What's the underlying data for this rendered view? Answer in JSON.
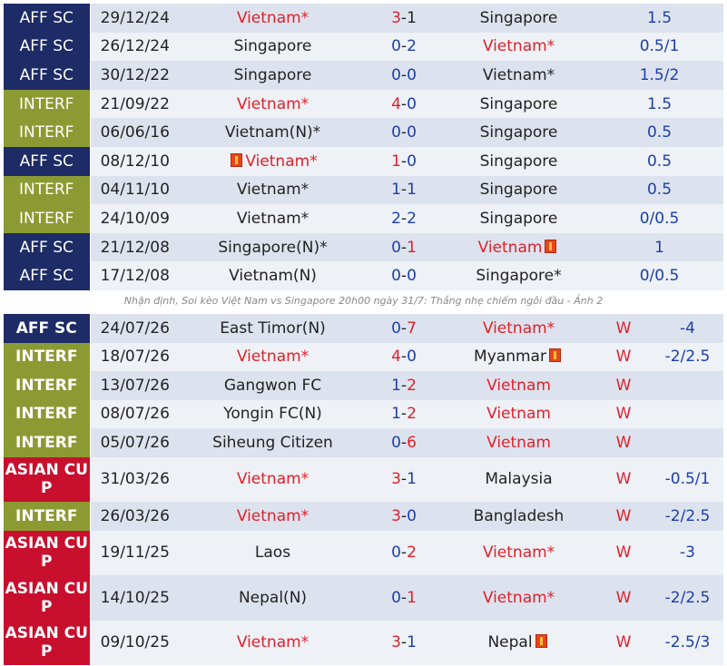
{
  "h2h": [
    {
      "comp": "AFF SC",
      "type": "aff",
      "date": "29/12/24",
      "home": "Vietnam*",
      "home_color": "red",
      "home_flag": false,
      "score_a": "3",
      "score_b": "1",
      "score_a_color": "red",
      "score_b_color": "dark",
      "away": "Singapore",
      "away_color": "dark",
      "away_flag": false,
      "odds": "1.5"
    },
    {
      "comp": "AFF SC",
      "type": "aff",
      "date": "26/12/24",
      "home": "Singapore",
      "home_color": "dark",
      "home_flag": false,
      "score_a": "0",
      "score_b": "2",
      "score_a_color": "blue",
      "score_b_color": "blue",
      "away": "Vietnam*",
      "away_color": "red",
      "away_flag": false,
      "odds": "0.5/1"
    },
    {
      "comp": "AFF SC",
      "type": "aff",
      "date": "30/12/22",
      "home": "Singapore",
      "home_color": "dark",
      "home_flag": false,
      "score_a": "0",
      "score_b": "0",
      "score_a_color": "blue",
      "score_b_color": "blue",
      "away": "Vietnam*",
      "away_color": "dark",
      "away_flag": false,
      "odds": "1.5/2"
    },
    {
      "comp": "INTERF",
      "type": "interf",
      "date": "21/09/22",
      "home": "Vietnam*",
      "home_color": "red",
      "home_flag": false,
      "score_a": "4",
      "score_b": "0",
      "score_a_color": "red",
      "score_b_color": "blue",
      "away": "Singapore",
      "away_color": "dark",
      "away_flag": false,
      "odds": "1.5"
    },
    {
      "comp": "INTERF",
      "type": "interf",
      "date": "06/06/16",
      "home": "Vietnam(N)*",
      "home_color": "dark",
      "home_flag": false,
      "score_a": "0",
      "score_b": "0",
      "score_a_color": "blue",
      "score_b_color": "blue",
      "away": "Singapore",
      "away_color": "dark",
      "away_flag": false,
      "odds": "0.5"
    },
    {
      "comp": "AFF SC",
      "type": "aff",
      "date": "08/12/10",
      "home": "Vietnam*",
      "home_color": "red",
      "home_flag": true,
      "score_a": "1",
      "score_b": "0",
      "score_a_color": "red",
      "score_b_color": "blue",
      "away": "Singapore",
      "away_color": "dark",
      "away_flag": false,
      "odds": "0.5"
    },
    {
      "comp": "INTERF",
      "type": "interf",
      "date": "04/11/10",
      "home": "Vietnam*",
      "home_color": "dark",
      "home_flag": false,
      "score_a": "1",
      "score_b": "1",
      "score_a_color": "blue",
      "score_b_color": "blue",
      "away": "Singapore",
      "away_color": "dark",
      "away_flag": false,
      "odds": "0.5"
    },
    {
      "comp": "INTERF",
      "type": "interf",
      "date": "24/10/09",
      "home": "Vietnam*",
      "home_color": "dark",
      "home_flag": false,
      "score_a": "2",
      "score_b": "2",
      "score_a_color": "blue",
      "score_b_color": "blue",
      "away": "Singapore",
      "away_color": "dark",
      "away_flag": false,
      "odds": "0/0.5"
    },
    {
      "comp": "AFF SC",
      "type": "aff",
      "date": "21/12/08",
      "home": "Singapore(N)*",
      "home_color": "dark",
      "home_flag": false,
      "score_a": "0",
      "score_b": "1",
      "score_a_color": "blue",
      "score_b_color": "red",
      "away": "Vietnam",
      "away_color": "red",
      "away_flag": true,
      "odds": "1"
    },
    {
      "comp": "AFF SC",
      "type": "aff",
      "date": "17/12/08",
      "home": "Vietnam(N)",
      "home_color": "dark",
      "home_flag": false,
      "score_a": "0",
      "score_b": "0",
      "score_a_color": "blue",
      "score_b_color": "blue",
      "away": "Singapore*",
      "away_color": "dark",
      "away_flag": false,
      "odds": "0/0.5"
    }
  ],
  "caption": "Nhận định, Soi kèo Việt Nam vs Singapore 20h00 ngày 31/7: Thắng nhẹ chiếm ngôi đầu - Ảnh 2",
  "recent": [
    {
      "comp": "AFF SC",
      "type": "aff",
      "date": "24/07/26",
      "home": "East Timor(N)",
      "home_color": "dark",
      "home_flag": false,
      "score_a": "0",
      "score_b": "7",
      "score_a_color": "blue",
      "score_b_color": "red",
      "away": "Vietnam*",
      "away_color": "red",
      "away_flag": false,
      "result": "W",
      "odds": "-4"
    },
    {
      "comp": "INTERF",
      "type": "interf",
      "date": "18/07/26",
      "home": "Vietnam*",
      "home_color": "red",
      "home_flag": false,
      "score_a": "4",
      "score_b": "0",
      "score_a_color": "red",
      "score_b_color": "blue",
      "away": "Myanmar",
      "away_color": "dark",
      "away_flag": true,
      "result": "W",
      "odds": "-2/2.5"
    },
    {
      "comp": "INTERF",
      "type": "interf",
      "date": "13/07/26",
      "home": "Gangwon FC",
      "home_color": "dark",
      "home_flag": false,
      "score_a": "1",
      "score_b": "2",
      "score_a_color": "blue",
      "score_b_color": "red",
      "away": "Vietnam",
      "away_color": "red",
      "away_flag": false,
      "result": "W",
      "odds": ""
    },
    {
      "comp": "INTERF",
      "type": "interf",
      "date": "08/07/26",
      "home": "Yongin FC(N)",
      "home_color": "dark",
      "home_flag": false,
      "score_a": "1",
      "score_b": "2",
      "score_a_color": "blue",
      "score_b_color": "red",
      "away": "Vietnam",
      "away_color": "red",
      "away_flag": false,
      "result": "W",
      "odds": ""
    },
    {
      "comp": "INTERF",
      "type": "interf",
      "date": "05/07/26",
      "home": "Siheung Citizen",
      "home_color": "dark",
      "home_flag": false,
      "score_a": "0",
      "score_b": "6",
      "score_a_color": "blue",
      "score_b_color": "red",
      "away": "Vietnam",
      "away_color": "red",
      "away_flag": false,
      "result": "W",
      "odds": ""
    },
    {
      "comp": "ASIAN CUP",
      "type": "asian",
      "date": "31/03/26",
      "home": "Vietnam*",
      "home_color": "red",
      "home_flag": false,
      "score_a": "3",
      "score_b": "1",
      "score_a_color": "red",
      "score_b_color": "blue",
      "away": "Malaysia",
      "away_color": "dark",
      "away_flag": false,
      "result": "W",
      "odds": "-0.5/1"
    },
    {
      "comp": "INTERF",
      "type": "interf",
      "date": "26/03/26",
      "home": "Vietnam*",
      "home_color": "red",
      "home_flag": false,
      "score_a": "3",
      "score_b": "0",
      "score_a_color": "red",
      "score_b_color": "blue",
      "away": "Bangladesh",
      "away_color": "dark",
      "away_flag": false,
      "result": "W",
      "odds": "-2/2.5"
    },
    {
      "comp": "ASIAN CUP",
      "type": "asian",
      "date": "19/11/25",
      "home": "Laos",
      "home_color": "dark",
      "home_flag": false,
      "score_a": "0",
      "score_b": "2",
      "score_a_color": "blue",
      "score_b_color": "red",
      "away": "Vietnam*",
      "away_color": "red",
      "away_flag": false,
      "result": "W",
      "odds": "-3"
    },
    {
      "comp": "ASIAN CUP",
      "type": "asian",
      "date": "14/10/25",
      "home": "Nepal(N)",
      "home_color": "dark",
      "home_flag": false,
      "score_a": "0",
      "score_b": "1",
      "score_a_color": "blue",
      "score_b_color": "red",
      "away": "Vietnam*",
      "away_color": "red",
      "away_flag": false,
      "result": "W",
      "odds": "-2/2.5"
    },
    {
      "comp": "ASIAN CUP",
      "type": "asian",
      "date": "09/10/25",
      "home": "Vietnam*",
      "home_color": "red",
      "home_flag": false,
      "score_a": "3",
      "score_b": "1",
      "score_a_color": "red",
      "score_b_color": "blue",
      "away": "Nepal",
      "away_color": "dark",
      "away_flag": true,
      "result": "W",
      "odds": "-2.5/3"
    }
  ],
  "colors": {
    "aff_bg": "#1d2b66",
    "interf_bg": "#8c9a33",
    "asian_bg": "#c8102e",
    "win": "#e0202a",
    "score_blue": "#1b3fa8",
    "row_odd": "#dde3ee",
    "row_even": "#eef1f6"
  },
  "icons": {
    "flag": "red-card-flag-icon"
  }
}
